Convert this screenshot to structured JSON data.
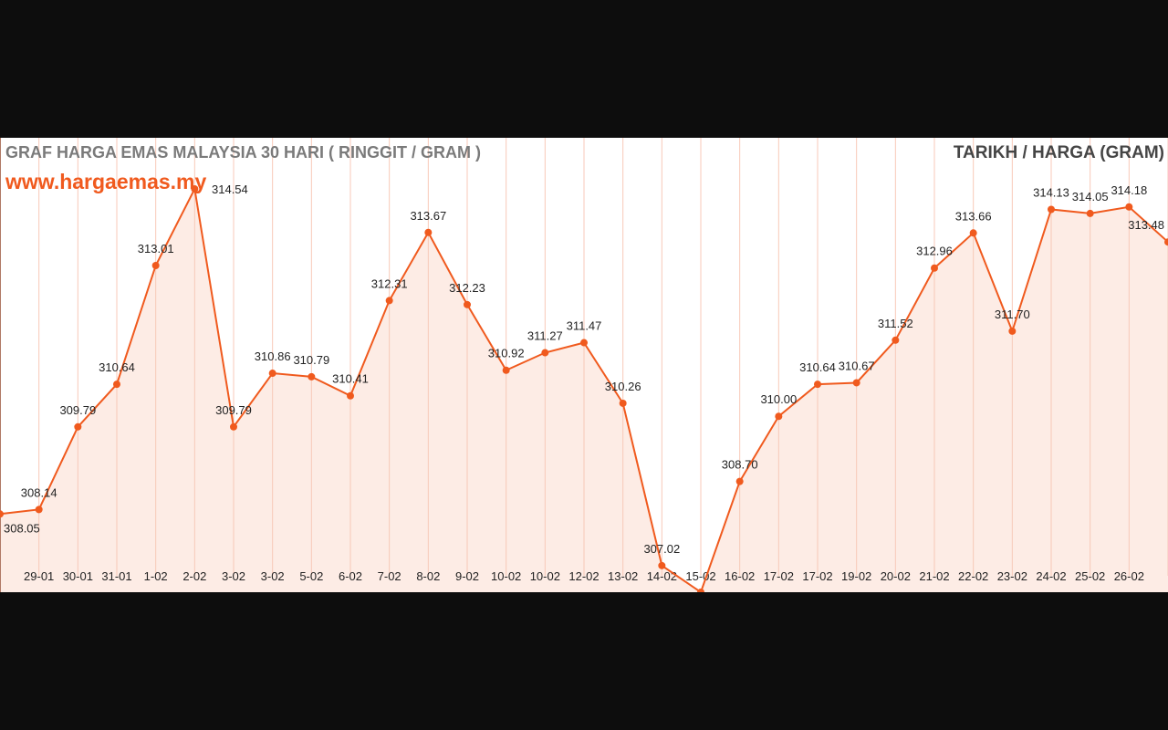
{
  "chart_data": {
    "type": "line",
    "title": "GRAF HARGA EMAS MALAYSIA 30 HARI ( RINGGIT / GRAM )",
    "subtitle": "www.hargaemas.my",
    "legend": "TARIKH / HARGA (GRAM)",
    "legend_placement": "top-right",
    "categories": [
      "",
      "29-01",
      "30-01",
      "31-01",
      "1-02",
      "2-02",
      "3-02",
      "3-02",
      "5-02",
      "6-02",
      "7-02",
      "8-02",
      "9-02",
      "10-02",
      "10-02",
      "12-02",
      "13-02",
      "14-02",
      "15-02",
      "16-02",
      "17-02",
      "17-02",
      "19-02",
      "20-02",
      "21-02",
      "22-02",
      "23-02",
      "24-02",
      "25-02",
      "26-02",
      ""
    ],
    "values": [
      308.05,
      308.14,
      309.79,
      310.64,
      313.01,
      314.54,
      309.79,
      310.86,
      310.79,
      310.41,
      312.31,
      313.67,
      312.23,
      310.92,
      311.27,
      311.47,
      310.26,
      307.02,
      306.49,
      308.7,
      310.0,
      310.64,
      310.67,
      311.52,
      312.96,
      313.66,
      311.7,
      314.13,
      314.05,
      314.18,
      313.48
    ],
    "labels": [
      "308.05",
      "308.14",
      "309.79",
      "310.64",
      "313.01",
      "314.54",
      "309.79",
      "310.86",
      "310.79",
      "310.41",
      "312.31",
      "313.67",
      "312.23",
      "310.92",
      "311.27",
      "311.47",
      "310.26",
      "307.02",
      "",
      "308.70",
      "310.00",
      "310.64",
      "310.67",
      "311.52",
      "312.96",
      "313.66",
      "311.70",
      "314.13",
      "314.05",
      "314.18",
      "313.48"
    ],
    "grid": "vertical",
    "colors": {
      "line": "#f05a1e",
      "fill": "#fdece5",
      "grid": "#f8c9b8"
    }
  }
}
